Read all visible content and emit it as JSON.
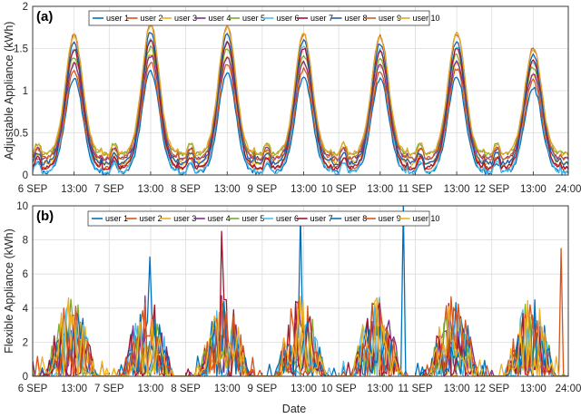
{
  "chart_data": [
    {
      "panel_label": "(a)",
      "type": "line",
      "ylabel": "Adjustable Appliance (kWh)",
      "xlabel": "",
      "ylim": [
        0,
        2
      ],
      "yticks": [
        "0",
        "0.5",
        "1",
        "1.5",
        "2"
      ],
      "x_tick_labels": [
        "6 SEP",
        "13:00",
        "7 SEP",
        "13:00",
        "8 SEP",
        "13:00",
        "9 SEP",
        "13:00",
        "10 SEP",
        "13:00",
        "11 SEP",
        "13:00",
        "12 SEP",
        "13:00",
        "24:00"
      ],
      "xlim_hours": [
        0,
        168
      ],
      "grid": true,
      "legend_placement": "top",
      "series": [
        {
          "name": "user 1",
          "color": "#0072BD"
        },
        {
          "name": "user 2",
          "color": "#D95319"
        },
        {
          "name": "user 3",
          "color": "#EDB120"
        },
        {
          "name": "user 4",
          "color": "#7E2F8E"
        },
        {
          "name": "user 5",
          "color": "#77AC30"
        },
        {
          "name": "user 6",
          "color": "#4DBEEE"
        },
        {
          "name": "user 7",
          "color": "#A2142F"
        },
        {
          "name": "user 8",
          "color": "#1F5FA8"
        },
        {
          "name": "user 9",
          "color": "#C8622A"
        },
        {
          "name": "user 10",
          "color": "#E3A82B"
        }
      ],
      "daily_peaks": [
        {
          "day": 1,
          "peak_hour": 13,
          "peak_range": [
            1.05,
            1.6
          ]
        },
        {
          "day": 2,
          "peak_hour": 37,
          "peak_range": [
            1.2,
            1.72
          ]
        },
        {
          "day": 3,
          "peak_hour": 61,
          "peak_range": [
            1.15,
            1.7
          ]
        },
        {
          "day": 4,
          "peak_hour": 85,
          "peak_range": [
            1.2,
            1.62
          ]
        },
        {
          "day": 5,
          "peak_hour": 109,
          "peak_range": [
            1.0,
            1.58
          ]
        },
        {
          "day": 6,
          "peak_hour": 133,
          "peak_range": [
            1.1,
            1.62
          ]
        },
        {
          "day": 7,
          "peak_hour": 157,
          "peak_range": [
            0.95,
            1.45
          ]
        }
      ]
    },
    {
      "panel_label": "(b)",
      "type": "line",
      "ylabel": "Flexible Appliance (kWh)",
      "xlabel": "Date",
      "ylim": [
        0,
        10
      ],
      "yticks": [
        "0",
        "2",
        "4",
        "6",
        "8",
        "10"
      ],
      "x_tick_labels": [
        "6 SEP",
        "13:00",
        "7 SEP",
        "13:00",
        "8 SEP",
        "13:00",
        "9 SEP",
        "13:00",
        "10 SEP",
        "13:00",
        "11 SEP",
        "13:00",
        "12 SEP",
        "13:00",
        "24:00"
      ],
      "xlim_hours": [
        0,
        168
      ],
      "grid": true,
      "legend_placement": "top",
      "series": [
        {
          "name": "user 1",
          "color": "#0072BD"
        },
        {
          "name": "user 2",
          "color": "#D95319"
        },
        {
          "name": "user 3",
          "color": "#EDB120"
        },
        {
          "name": "user 4",
          "color": "#7E2F8E"
        },
        {
          "name": "user 5",
          "color": "#77AC30"
        },
        {
          "name": "user 6",
          "color": "#4DBEEE"
        },
        {
          "name": "user 7",
          "color": "#A2142F"
        },
        {
          "name": "user 8",
          "color": "#0072BD"
        },
        {
          "name": "user 9",
          "color": "#D95319"
        },
        {
          "name": "user 10",
          "color": "#EDB120"
        }
      ],
      "notable_peaks": [
        {
          "series": "user 1",
          "hour": 37,
          "value": 7.0
        },
        {
          "series": "user 7",
          "hour": 59,
          "value": 8.5
        },
        {
          "series": "user 1",
          "hour": 84,
          "value": 9.5
        },
        {
          "series": "user 8",
          "hour": 116,
          "value": 10.0
        },
        {
          "series": "user 2",
          "hour": 166,
          "value": 7.5
        }
      ]
    }
  ]
}
